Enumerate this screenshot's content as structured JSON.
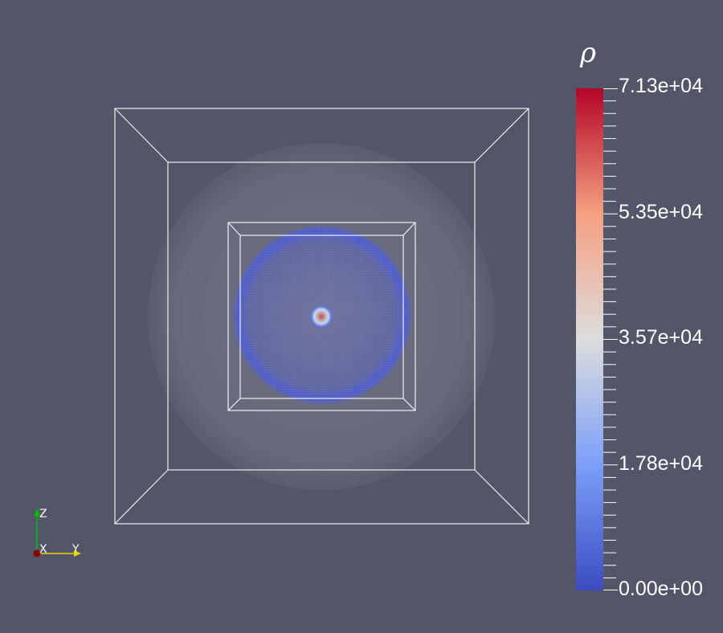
{
  "scene": {
    "background": "#525668",
    "outline_color": "#ffffff",
    "outer_sphere_color": "#6f7282",
    "inner_sphere_color": "#4c5fd4",
    "core_color": "#b4504a"
  },
  "colorbar": {
    "title": "ρ",
    "min": 0.0,
    "max": 71300,
    "labels": [
      "7.13e+04",
      "5.35e+04",
      "3.57e+04",
      "1.78e+04",
      "0.00e+00"
    ],
    "colormap": "Cool to Warm",
    "color_low": "#3b4cc0",
    "color_mid": "#dddddd",
    "color_high": "#b40426"
  },
  "orientation_axes": {
    "labels": {
      "x": "X",
      "y": "Y",
      "z": "Z"
    },
    "colors": {
      "x": "#8b0000",
      "y": "#e5d400",
      "z": "#00c000"
    }
  }
}
